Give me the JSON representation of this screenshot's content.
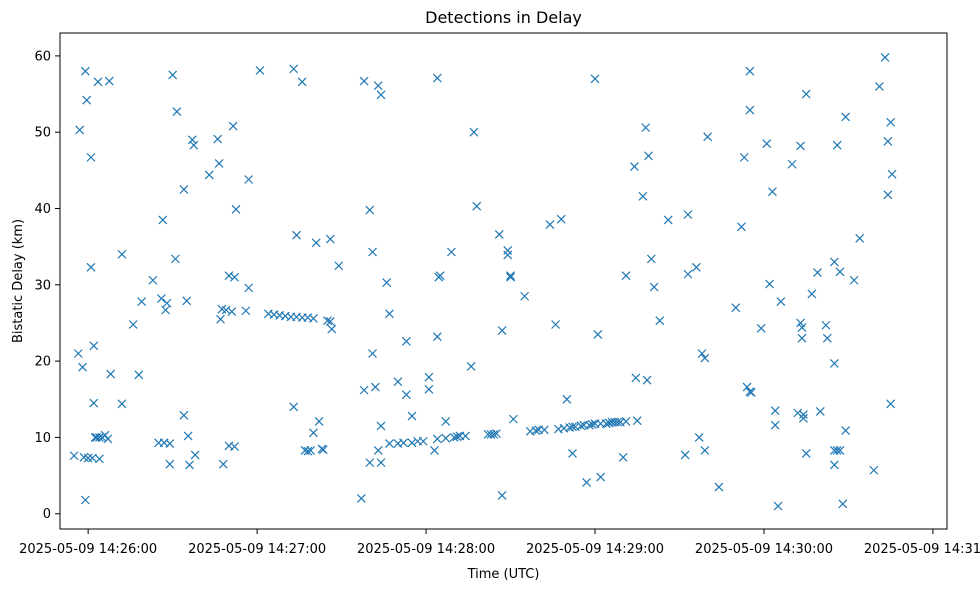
{
  "chart_data": {
    "type": "scatter",
    "title": "Detections in Delay",
    "xlabel": "Time (UTC)",
    "ylabel": "Bistatic Delay (km)",
    "x_unit": "seconds since 2025-05-09 14:26:00",
    "xlim": [
      -10,
      305
    ],
    "ylim": [
      -2,
      63
    ],
    "marker": "x",
    "color": "#1f77b4",
    "grid": false,
    "xticks": [
      {
        "value": 0,
        "label": "2025-05-09 14:26:00"
      },
      {
        "value": 60,
        "label": "2025-05-09 14:27:00"
      },
      {
        "value": 120,
        "label": "2025-05-09 14:28:00"
      },
      {
        "value": 180,
        "label": "2025-05-09 14:29:00"
      },
      {
        "value": 240,
        "label": "2025-05-09 14:30:00"
      },
      {
        "value": 300,
        "label": "2025-05-09 14:31:00"
      }
    ],
    "yticks": [
      {
        "value": 0,
        "label": "0"
      },
      {
        "value": 10,
        "label": "10"
      },
      {
        "value": 20,
        "label": "20"
      },
      {
        "value": 30,
        "label": "30"
      },
      {
        "value": 40,
        "label": "40"
      },
      {
        "value": 50,
        "label": "50"
      },
      {
        "value": 60,
        "label": "60"
      }
    ],
    "points": [
      [
        -5,
        7.6
      ],
      [
        -3.5,
        21
      ],
      [
        -3,
        50.3
      ],
      [
        -2,
        19.2
      ],
      [
        -1.5,
        7.4
      ],
      [
        -1,
        1.8
      ],
      [
        -1,
        58
      ],
      [
        -0.5,
        54.2
      ],
      [
        0,
        7.3
      ],
      [
        1,
        46.7
      ],
      [
        1,
        32.3
      ],
      [
        1.5,
        7.3
      ],
      [
        2,
        14.5
      ],
      [
        2,
        22
      ],
      [
        2.5,
        10
      ],
      [
        3,
        10
      ],
      [
        3.5,
        56.6
      ],
      [
        4,
        10
      ],
      [
        4,
        7.2
      ],
      [
        5,
        10
      ],
      [
        6,
        10.3
      ],
      [
        7,
        9.8
      ],
      [
        7.5,
        56.7
      ],
      [
        8,
        18.3
      ],
      [
        12,
        34
      ],
      [
        12,
        14.4
      ],
      [
        16,
        24.8
      ],
      [
        18,
        18.2
      ],
      [
        19,
        27.8
      ],
      [
        23,
        30.6
      ],
      [
        25,
        9.3
      ],
      [
        26,
        28.2
      ],
      [
        26.5,
        38.5
      ],
      [
        27,
        9.3
      ],
      [
        27.5,
        26.7
      ],
      [
        28,
        27.6
      ],
      [
        29,
        9.2
      ],
      [
        29,
        6.5
      ],
      [
        30,
        57.5
      ],
      [
        31,
        33.4
      ],
      [
        31.5,
        52.7
      ],
      [
        34,
        42.5
      ],
      [
        34,
        12.9
      ],
      [
        35,
        27.9
      ],
      [
        35.5,
        10.2
      ],
      [
        36,
        6.4
      ],
      [
        37,
        49
      ],
      [
        37.5,
        48.3
      ],
      [
        38,
        7.7
      ],
      [
        43,
        44.4
      ],
      [
        46,
        49.1
      ],
      [
        46.5,
        45.9
      ],
      [
        47,
        25.5
      ],
      [
        47.5,
        26.8
      ],
      [
        48,
        6.5
      ],
      [
        49,
        26.7
      ],
      [
        50,
        8.9
      ],
      [
        50,
        31.2
      ],
      [
        51,
        26.5
      ],
      [
        51.5,
        50.8
      ],
      [
        52,
        8.8
      ],
      [
        52,
        31
      ],
      [
        52.5,
        39.9
      ],
      [
        56,
        26.6
      ],
      [
        57,
        29.6
      ],
      [
        57,
        43.8
      ],
      [
        61,
        58.1
      ],
      [
        64,
        26.2
      ],
      [
        66,
        26.1
      ],
      [
        68,
        26
      ],
      [
        70,
        25.9
      ],
      [
        72,
        25.8
      ],
      [
        73,
        58.3
      ],
      [
        73,
        14
      ],
      [
        74,
        36.5
      ],
      [
        74,
        25.8
      ],
      [
        76,
        56.6
      ],
      [
        76,
        25.7
      ],
      [
        77,
        8.3
      ],
      [
        78,
        25.7
      ],
      [
        78,
        8.2
      ],
      [
        79,
        8.3
      ],
      [
        80,
        25.6
      ],
      [
        80,
        10.6
      ],
      [
        81,
        35.5
      ],
      [
        82,
        12.1
      ],
      [
        83,
        8.5
      ],
      [
        83.5,
        8.4
      ],
      [
        85,
        25.3
      ],
      [
        86,
        36
      ],
      [
        86,
        25.2
      ],
      [
        86.5,
        24.2
      ],
      [
        89,
        32.5
      ],
      [
        97,
        2
      ],
      [
        98,
        56.7
      ],
      [
        98,
        16.2
      ],
      [
        100,
        6.7
      ],
      [
        100,
        39.8
      ],
      [
        101,
        21
      ],
      [
        101,
        34.3
      ],
      [
        102,
        16.6
      ],
      [
        103,
        56.1
      ],
      [
        103,
        8.3
      ],
      [
        104,
        6.7
      ],
      [
        104,
        54.9
      ],
      [
        104,
        11.5
      ],
      [
        106,
        30.3
      ],
      [
        107,
        26.2
      ],
      [
        107,
        9.2
      ],
      [
        110,
        9.2
      ],
      [
        110,
        17.3
      ],
      [
        112,
        9.3
      ],
      [
        113,
        22.6
      ],
      [
        113,
        15.6
      ],
      [
        115,
        12.8
      ],
      [
        115,
        9.3
      ],
      [
        117,
        9.5
      ],
      [
        119,
        9.5
      ],
      [
        121,
        17.9
      ],
      [
        121,
        16.3
      ],
      [
        123,
        8.3
      ],
      [
        124,
        57.1
      ],
      [
        124,
        23.2
      ],
      [
        124,
        9.8
      ],
      [
        124.5,
        31
      ],
      [
        125,
        31.2
      ],
      [
        127,
        12.1
      ],
      [
        127,
        9.9
      ],
      [
        129,
        34.3
      ],
      [
        130,
        10
      ],
      [
        131,
        10.1
      ],
      [
        132,
        10.2
      ],
      [
        134,
        10.2
      ],
      [
        136,
        19.3
      ],
      [
        137,
        50
      ],
      [
        138,
        40.3
      ],
      [
        142,
        10.4
      ],
      [
        143,
        10.4
      ],
      [
        144,
        10.4
      ],
      [
        145,
        10.5
      ],
      [
        146,
        36.6
      ],
      [
        147,
        24
      ],
      [
        147,
        2.4
      ],
      [
        149,
        34.5
      ],
      [
        149,
        33.9
      ],
      [
        150,
        31.2
      ],
      [
        150,
        31
      ],
      [
        151,
        12.4
      ],
      [
        155,
        28.5
      ],
      [
        157,
        10.8
      ],
      [
        159,
        10.9
      ],
      [
        160,
        11
      ],
      [
        162,
        11
      ],
      [
        164,
        37.9
      ],
      [
        166,
        24.8
      ],
      [
        167,
        11.1
      ],
      [
        168,
        38.6
      ],
      [
        169,
        11.2
      ],
      [
        170,
        15
      ],
      [
        171,
        11.3
      ],
      [
        172,
        11.4
      ],
      [
        172,
        7.9
      ],
      [
        173,
        11.4
      ],
      [
        175,
        11.5
      ],
      [
        176,
        11.6
      ],
      [
        177,
        4.1
      ],
      [
        178,
        11.6
      ],
      [
        179,
        11.7
      ],
      [
        180,
        57
      ],
      [
        180,
        11.8
      ],
      [
        181,
        23.5
      ],
      [
        182,
        4.8
      ],
      [
        182,
        11.8
      ],
      [
        184,
        11.8
      ],
      [
        185,
        11.9
      ],
      [
        186,
        12
      ],
      [
        187,
        12
      ],
      [
        188,
        12
      ],
      [
        189,
        12
      ],
      [
        190,
        7.4
      ],
      [
        191,
        31.2
      ],
      [
        191,
        12.1
      ],
      [
        194,
        45.5
      ],
      [
        194.5,
        17.8
      ],
      [
        195,
        12.2
      ],
      [
        197,
        41.6
      ],
      [
        198,
        50.6
      ],
      [
        198.5,
        17.5
      ],
      [
        199,
        46.9
      ],
      [
        200,
        33.4
      ],
      [
        201,
        29.7
      ],
      [
        203,
        25.3
      ],
      [
        206,
        38.5
      ],
      [
        212,
        7.7
      ],
      [
        213,
        39.2
      ],
      [
        213,
        31.4
      ],
      [
        216,
        32.3
      ],
      [
        217,
        10
      ],
      [
        218,
        21
      ],
      [
        219,
        8.3
      ],
      [
        219,
        20.4
      ],
      [
        220,
        49.4
      ],
      [
        224,
        3.5
      ],
      [
        230,
        27
      ],
      [
        232,
        37.6
      ],
      [
        233,
        46.7
      ],
      [
        234,
        16.6
      ],
      [
        235,
        16
      ],
      [
        235,
        52.9
      ],
      [
        235,
        58
      ],
      [
        235.5,
        15.9
      ],
      [
        239,
        24.3
      ],
      [
        241,
        48.5
      ],
      [
        242,
        30.1
      ],
      [
        243,
        42.2
      ],
      [
        244,
        11.6
      ],
      [
        244,
        13.5
      ],
      [
        245,
        1
      ],
      [
        246,
        27.8
      ],
      [
        250,
        45.8
      ],
      [
        252,
        13.2
      ],
      [
        253,
        25
      ],
      [
        253,
        48.2
      ],
      [
        253.5,
        24.4
      ],
      [
        253.5,
        23
      ],
      [
        254,
        13
      ],
      [
        254,
        12.5
      ],
      [
        255,
        7.9
      ],
      [
        255,
        55
      ],
      [
        257,
        28.8
      ],
      [
        259,
        31.6
      ],
      [
        260,
        13.4
      ],
      [
        262,
        24.7
      ],
      [
        262.5,
        23
      ],
      [
        265,
        19.7
      ],
      [
        265,
        33
      ],
      [
        265,
        6.4
      ],
      [
        265,
        8.3
      ],
      [
        266,
        8.3
      ],
      [
        266,
        48.3
      ],
      [
        267,
        8.3
      ],
      [
        267,
        31.7
      ],
      [
        268,
        1.3
      ],
      [
        269,
        10.9
      ],
      [
        269,
        52
      ],
      [
        272,
        30.6
      ],
      [
        274,
        36.1
      ],
      [
        279,
        5.7
      ],
      [
        281,
        56
      ],
      [
        283,
        59.8
      ],
      [
        284,
        48.8
      ],
      [
        284,
        41.8
      ],
      [
        285,
        51.3
      ],
      [
        285,
        14.4
      ],
      [
        285.5,
        44.5
      ]
    ]
  }
}
